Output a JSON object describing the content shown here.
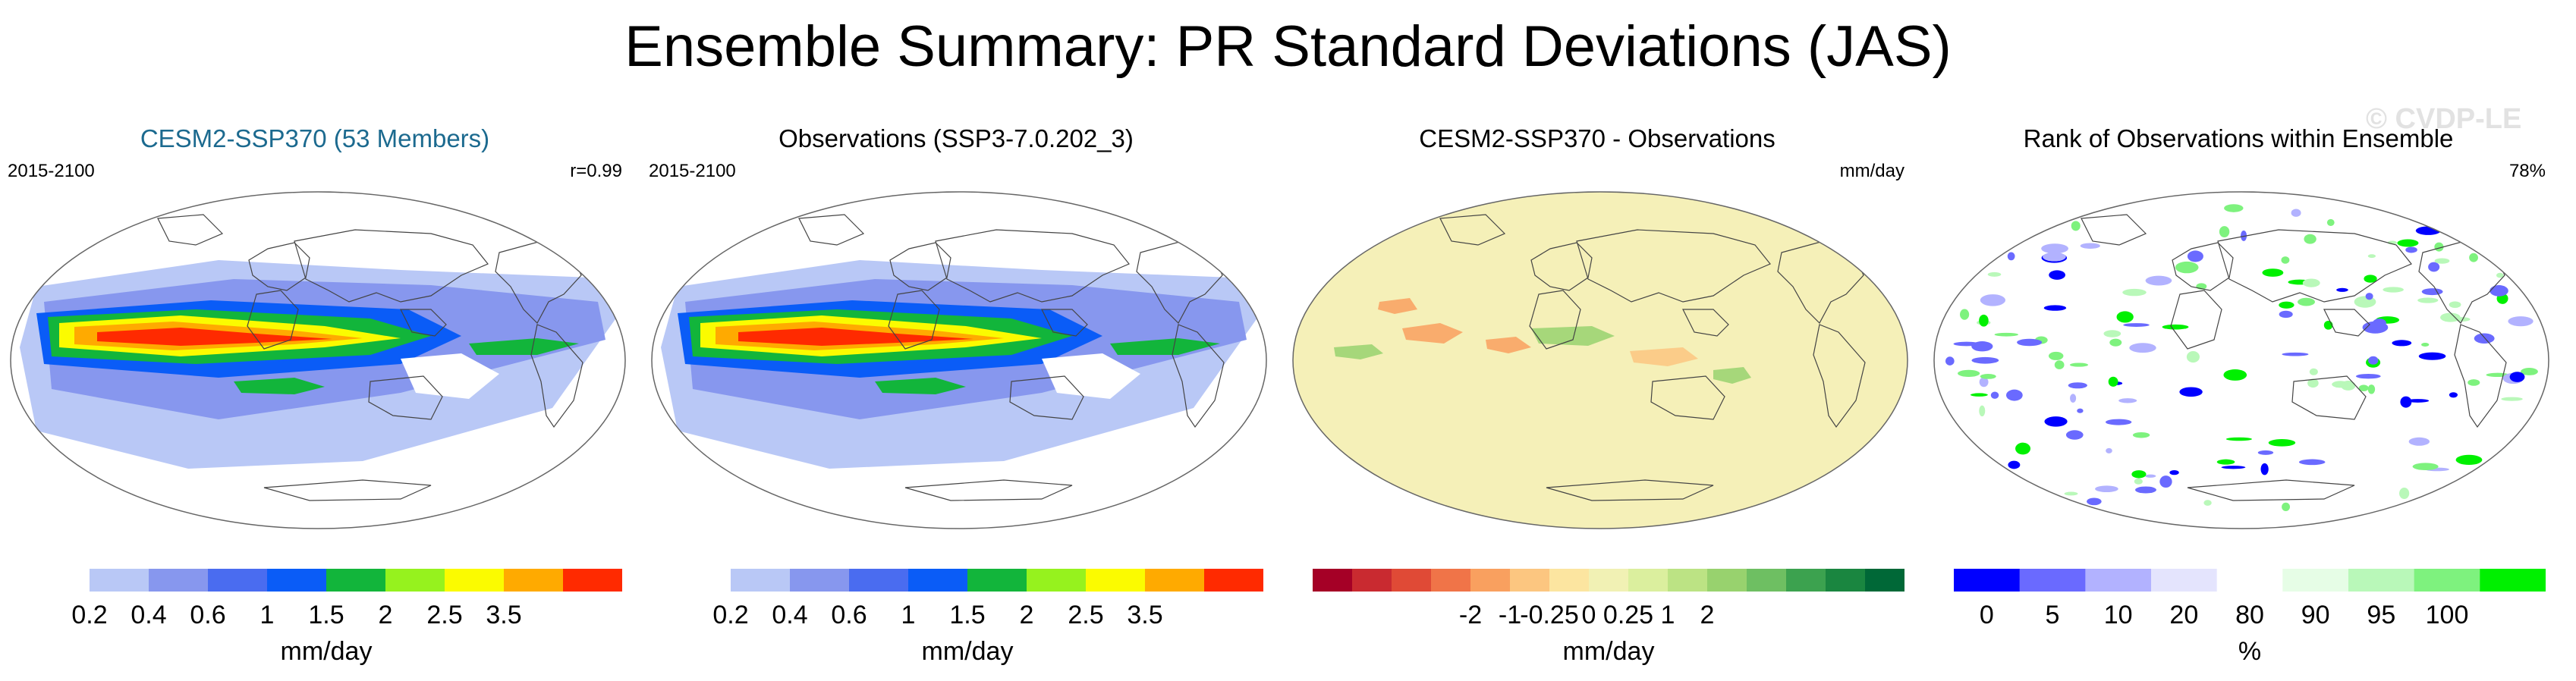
{
  "title": "Ensemble Summary: PR Standard Deviations (JAS)",
  "watermark": "© CVDP-LE",
  "panels": [
    {
      "title": "CESM2-SSP370 (53 Members)",
      "title_color": "#1c6a8f",
      "left_label": "2015-2100",
      "right_label": "r=0.99",
      "map_type": "std",
      "colorbar": {
        "colors": [
          "#ffffff",
          "#b9c8f6",
          "#8797ee",
          "#4a6cf0",
          "#0a5cf7",
          "#12b53b",
          "#96f21e",
          "#fbfb00",
          "#ffaa00",
          "#ff2a00"
        ],
        "tick_labels": [
          "0.2",
          "0.4",
          "0.6",
          "1",
          "1.5",
          "2",
          "2.5",
          "3.5"
        ],
        "units": "mm/day"
      }
    },
    {
      "title": "Observations (SSP3-7.0.202_3)",
      "title_color": "#000000",
      "left_label": "2015-2100",
      "right_label": "",
      "map_type": "std",
      "colorbar": {
        "colors": [
          "#ffffff",
          "#b9c8f6",
          "#8797ee",
          "#4a6cf0",
          "#0a5cf7",
          "#12b53b",
          "#96f21e",
          "#fbfb00",
          "#ffaa00",
          "#ff2a00"
        ],
        "tick_labels": [
          "0.2",
          "0.4",
          "0.6",
          "1",
          "1.5",
          "2",
          "2.5",
          "3.5"
        ],
        "units": "mm/day"
      }
    },
    {
      "title": "CESM2-SSP370 - Observations",
      "title_color": "#000000",
      "left_label": "",
      "right_label": "mm/day",
      "map_type": "diff",
      "colorbar": {
        "colors": [
          "#a50026",
          "#c92a30",
          "#e04a36",
          "#f07448",
          "#f9a05f",
          "#fcc680",
          "#fce5a0",
          "#f1f1b4",
          "#dbef9e",
          "#bce384",
          "#98d26e",
          "#6ebf62",
          "#3ca24f",
          "#1a8640",
          "#006837"
        ],
        "tick_labels": [
          "-2",
          "-1",
          "-0.25",
          "0",
          "0.25",
          "1",
          "2"
        ],
        "units": "mm/day"
      }
    },
    {
      "title": "Rank of Observations within Ensemble",
      "title_color": "#000000",
      "left_label": "",
      "right_label": "78%",
      "map_type": "rank",
      "colorbar": {
        "colors": [
          "#0000ff",
          "#6a6aff",
          "#b2b2ff",
          "#e4e4fd",
          "#ffffff",
          "#e6fde6",
          "#b9f8b9",
          "#7ef27e",
          "#00f000"
        ],
        "tick_labels": [
          "0",
          "5",
          "10",
          "20",
          "80",
          "90",
          "95",
          "100"
        ],
        "units": "%"
      }
    }
  ],
  "chart_data": [
    {
      "type": "heatmap",
      "title": "CESM2-SSP370 (53 Members)",
      "subtitle": "2015-2100",
      "annotation": "r=0.99",
      "levels": [
        0.2,
        0.4,
        0.6,
        1,
        1.5,
        2,
        2.5,
        3.5
      ],
      "units": "mm/day"
    },
    {
      "type": "heatmap",
      "title": "Observations (SSP3-7.0.202_3)",
      "subtitle": "2015-2100",
      "levels": [
        0.2,
        0.4,
        0.6,
        1,
        1.5,
        2,
        2.5,
        3.5
      ],
      "units": "mm/day"
    },
    {
      "type": "heatmap",
      "title": "CESM2-SSP370 - Observations",
      "levels": [
        -2,
        -1,
        -0.25,
        0,
        0.25,
        1,
        2
      ],
      "units": "mm/day"
    },
    {
      "type": "heatmap",
      "title": "Rank of Observations within Ensemble",
      "annotation": "78%",
      "levels": [
        0,
        5,
        10,
        20,
        80,
        90,
        95,
        100
      ],
      "units": "%"
    }
  ]
}
